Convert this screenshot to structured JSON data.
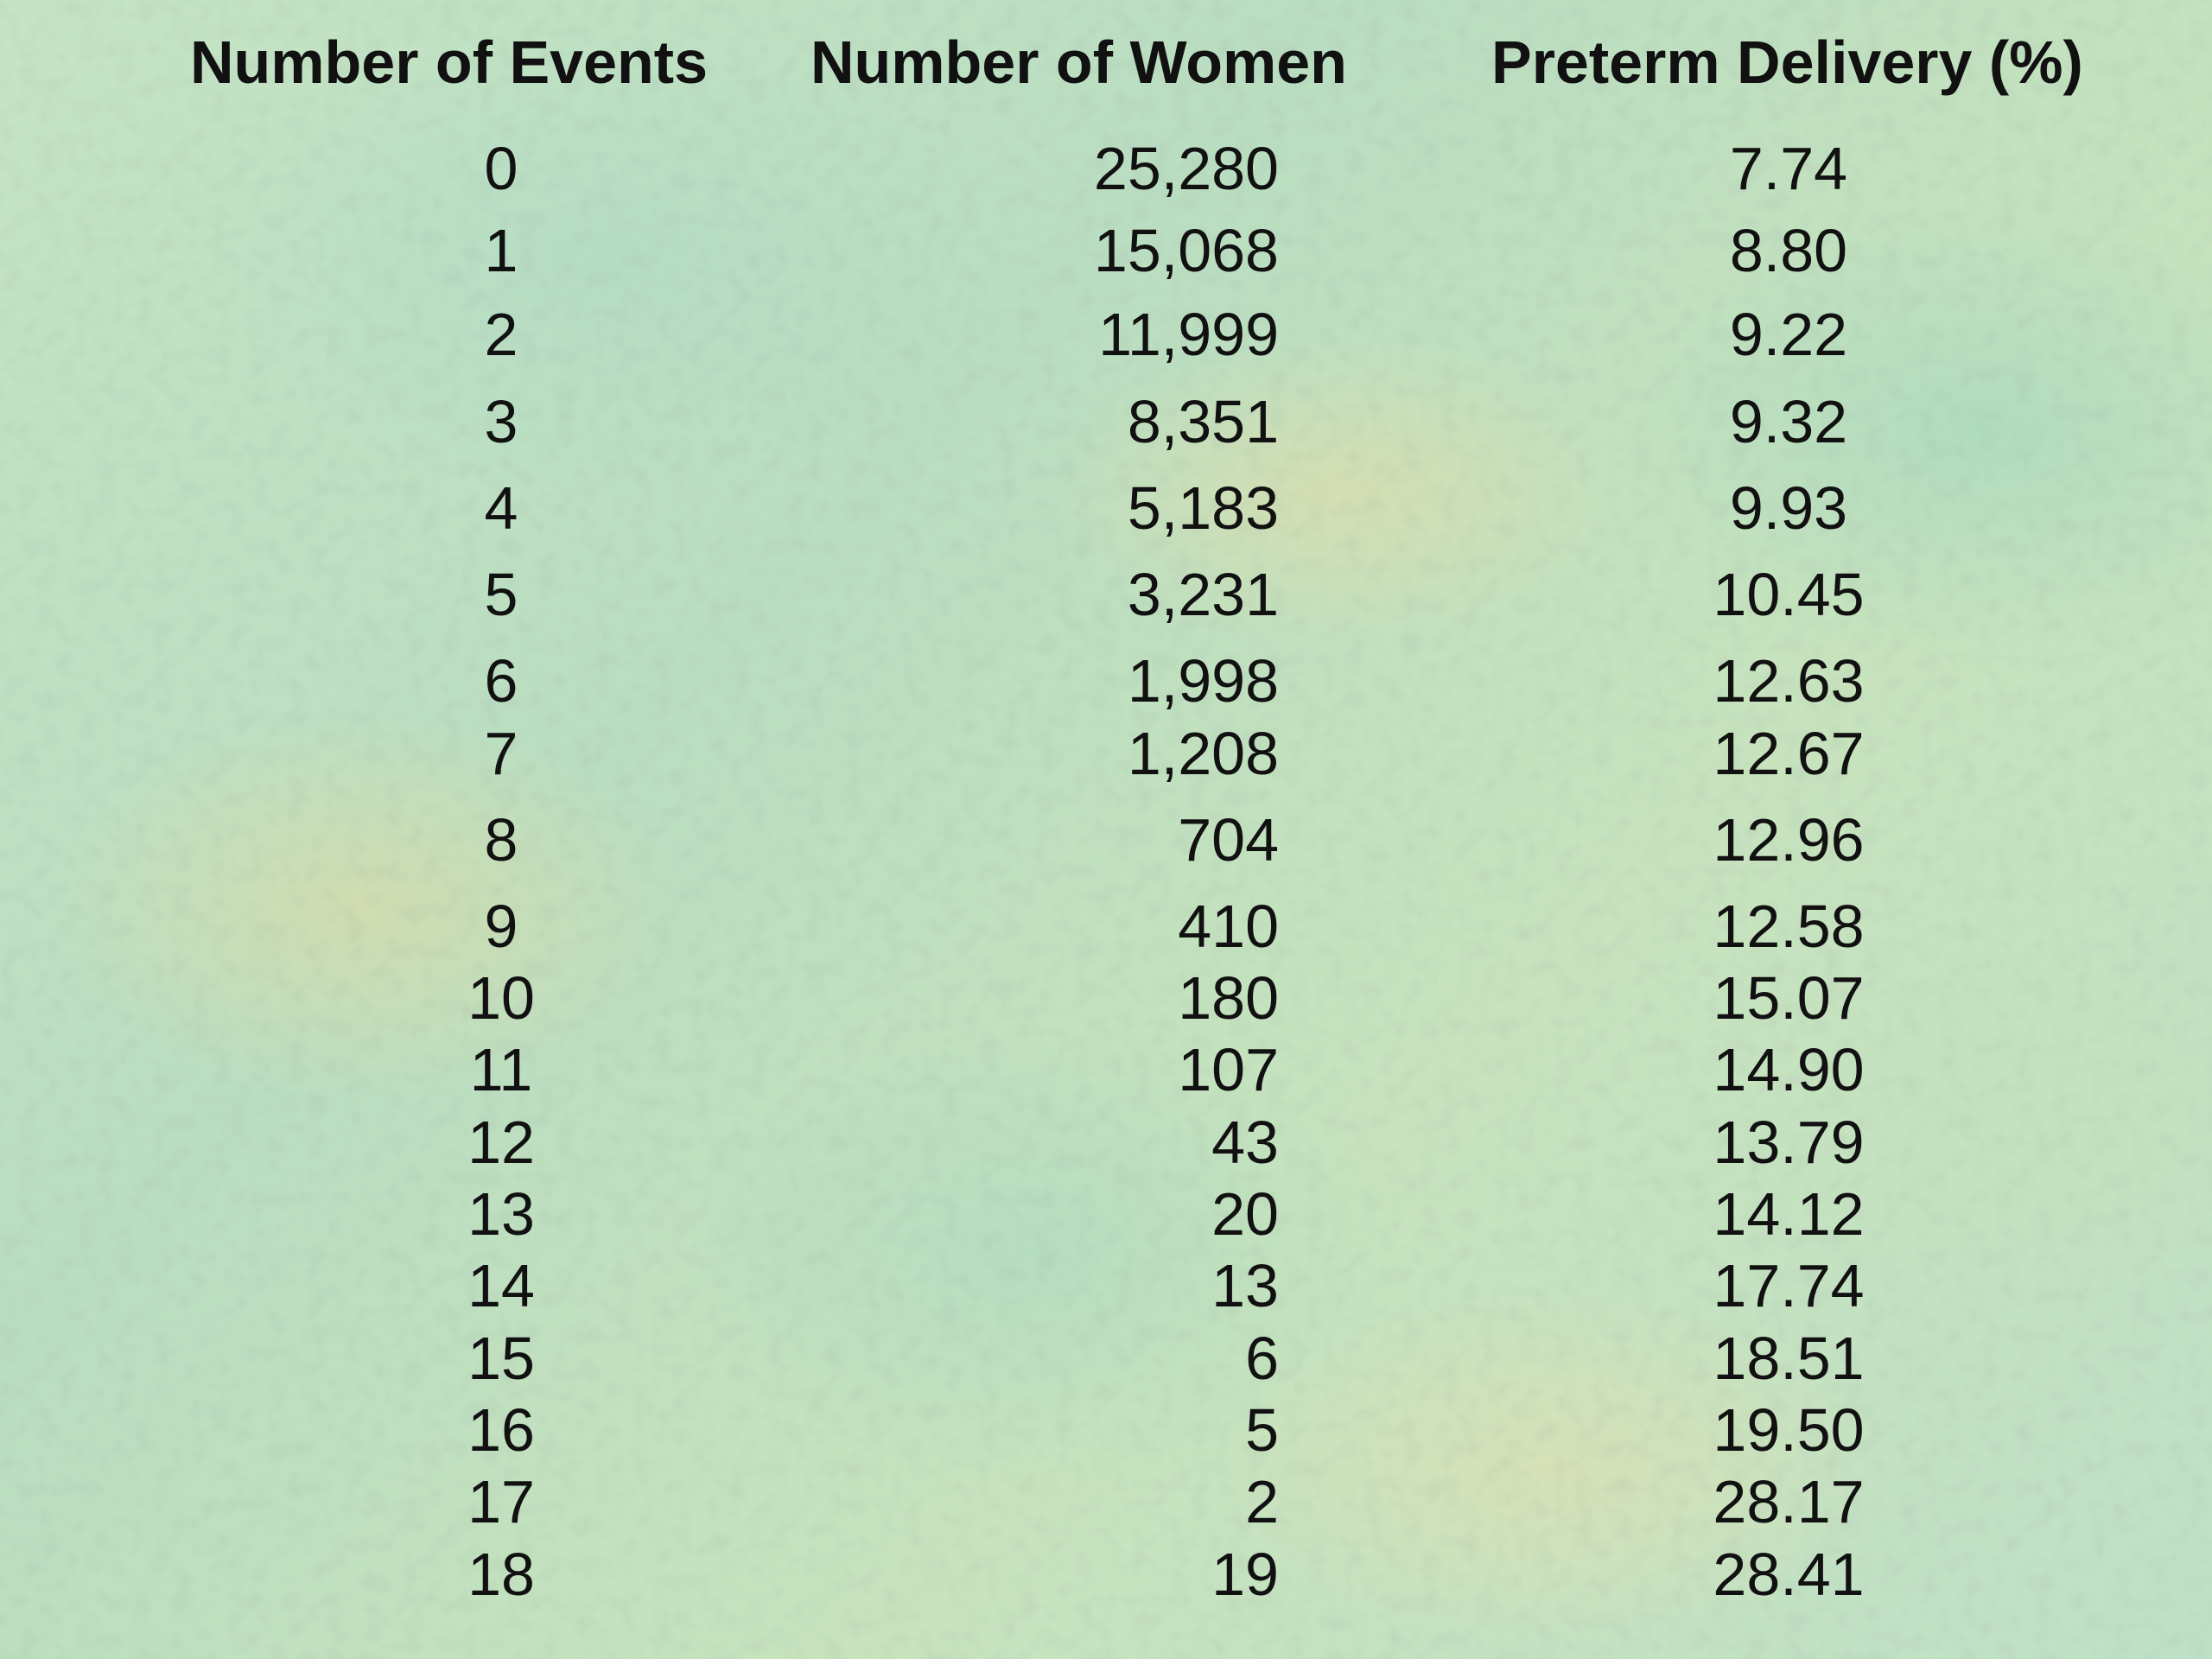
{
  "table": {
    "headers": {
      "events": "Number of Events",
      "women": "Number of Women",
      "preterm": "Preterm Delivery (%)"
    },
    "rows": [
      {
        "events": "0",
        "women": "25,280",
        "preterm": "7.74"
      },
      {
        "events": "1",
        "women": "15,068",
        "preterm": "8.80"
      },
      {
        "events": "2",
        "women": "11,999",
        "preterm": "9.22"
      },
      {
        "events": "3",
        "women": "8,351",
        "preterm": "9.32"
      },
      {
        "events": "4",
        "women": "5,183",
        "preterm": "9.93"
      },
      {
        "events": "5",
        "women": "3,231",
        "preterm": "10.45"
      },
      {
        "events": "6",
        "women": "1,998",
        "preterm": "12.63"
      },
      {
        "events": "7",
        "women": "1,208",
        "preterm": "12.67"
      },
      {
        "events": "8",
        "women": "704",
        "preterm": "12.96"
      },
      {
        "events": "9",
        "women": "410",
        "preterm": "12.58"
      },
      {
        "events": "10",
        "women": "180",
        "preterm": "15.07"
      },
      {
        "events": "11",
        "women": "107",
        "preterm": "14.90"
      },
      {
        "events": "12",
        "women": "43",
        "preterm": "13.79"
      },
      {
        "events": "13",
        "women": "20",
        "preterm": "14.12"
      },
      {
        "events": "14",
        "women": "13",
        "preterm": "17.74"
      },
      {
        "events": "15",
        "women": "6",
        "preterm": "18.51"
      },
      {
        "events": "16",
        "women": "5",
        "preterm": "19.50"
      },
      {
        "events": "17",
        "women": "2",
        "preterm": "28.17"
      },
      {
        "events": "18",
        "women": "19",
        "preterm": "28.41"
      }
    ]
  }
}
